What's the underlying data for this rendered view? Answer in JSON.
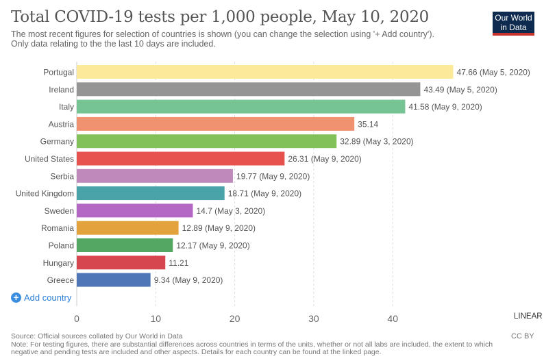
{
  "header": {
    "title": "Total COVID-19 tests per 1,000 people, May 10, 2020",
    "subtitle_line1": "The most recent figures for selection of countries is shown (you can change the selection using '+ Add country').",
    "subtitle_line2": "Only data relating to the the last 10 days are included.",
    "logo_line1": "Our World",
    "logo_line2": "in Data"
  },
  "controls": {
    "add_country_label": "Add country",
    "add_country_icon": "plus-circle-icon",
    "scale_toggle_label": "LINEAR"
  },
  "footer": {
    "source": "Source: Official sources collated by Our World in Data",
    "note_line1": "Note: For testing figures, there are substantial differences across countries in terms of the units, whether or not all labs are included, the extent to which",
    "note_line2": "negative and pending tests are included and other aspects. Details for each country can be found at the linked page.",
    "license": "CC BY"
  },
  "colors": {
    "logo_bg": "#0f2a4f",
    "logo_accent": "#c8322d",
    "link": "#2d7fd8"
  },
  "chart_data": {
    "type": "bar",
    "orientation": "horizontal",
    "title": "Total COVID-19 tests per 1,000 people, May 10, 2020",
    "xlabel": "",
    "ylabel": "",
    "xlim": [
      0,
      50
    ],
    "xticks": [
      0,
      10,
      20,
      30,
      40
    ],
    "grid": true,
    "categories": [
      "Portugal",
      "Ireland",
      "Italy",
      "Austria",
      "Germany",
      "United States",
      "Serbia",
      "United Kingdom",
      "Sweden",
      "Romania",
      "Poland",
      "Hungary",
      "Greece"
    ],
    "values": [
      47.66,
      43.49,
      41.58,
      35.14,
      32.89,
      26.31,
      19.77,
      18.71,
      14.7,
      12.89,
      12.17,
      11.21,
      9.34
    ],
    "labels": [
      "47.66 (May 5, 2020)",
      "43.49 (May 5, 2020)",
      "41.58 (May 9, 2020)",
      "35.14",
      "32.89 (May 3, 2020)",
      "26.31 (May 9, 2020)",
      "19.77 (May 9, 2020)",
      "18.71 (May 9, 2020)",
      "14.7 (May 3, 2020)",
      "12.89 (May 9, 2020)",
      "12.17 (May 9, 2020)",
      "11.21",
      "9.34 (May 9, 2020)"
    ],
    "colors": [
      "#fce99a",
      "#959595",
      "#76c393",
      "#f09170",
      "#82c15a",
      "#e7524f",
      "#bf8abb",
      "#49a3a9",
      "#b567c5",
      "#e3a23c",
      "#54a763",
      "#d5464f",
      "#4f76b6"
    ]
  }
}
